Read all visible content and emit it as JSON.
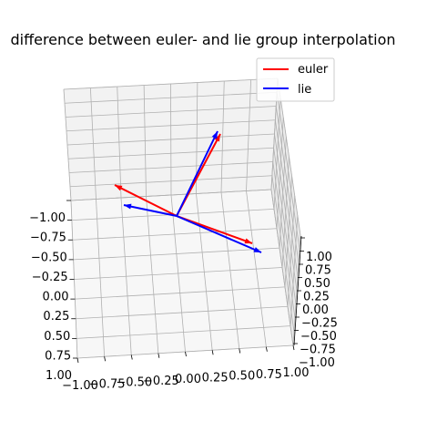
{
  "chart_data": {
    "type": "3d-quiver",
    "title": "difference between euler- and lie group interpolation",
    "legend": {
      "placement": "upper-right",
      "entries": [
        {
          "name": "euler",
          "color": "#ff0000"
        },
        {
          "name": "lie",
          "color": "#0000ff"
        }
      ]
    },
    "axes": {
      "x": {
        "ticks": [
          "−1.00",
          "−0.75",
          "−0.50",
          "−0.25",
          "0.00",
          "0.25",
          "0.50",
          "0.75",
          "1.00"
        ]
      },
      "y": {
        "ticks": [
          "−1.00",
          "−0.75",
          "−0.50",
          "−0.25",
          "0.00",
          "0.25",
          "0.50",
          "0.75",
          "1.00"
        ]
      },
      "z": {
        "ticks": [
          "1.00",
          "0.75",
          "0.50",
          "0.25",
          "0.00",
          "−0.25",
          "−0.50",
          "−0.75",
          "−1.00"
        ]
      }
    },
    "grid": true,
    "series": [
      {
        "name": "euler",
        "color": "#ff0000",
        "origin": [
          0,
          0,
          0
        ],
        "vectors": [
          {
            "axis": "x",
            "approx_screen_dir": "toward-lower-right"
          },
          {
            "axis": "y",
            "approx_screen_dir": "toward-upper-left"
          },
          {
            "axis": "z",
            "approx_screen_dir": "upward"
          }
        ]
      },
      {
        "name": "lie",
        "color": "#0000ff",
        "origin": [
          0,
          0,
          0
        ],
        "vectors": [
          {
            "axis": "x",
            "approx_screen_dir": "toward-lower-right"
          },
          {
            "axis": "y",
            "approx_screen_dir": "toward-left"
          },
          {
            "axis": "z",
            "approx_screen_dir": "upward"
          }
        ]
      }
    ]
  }
}
